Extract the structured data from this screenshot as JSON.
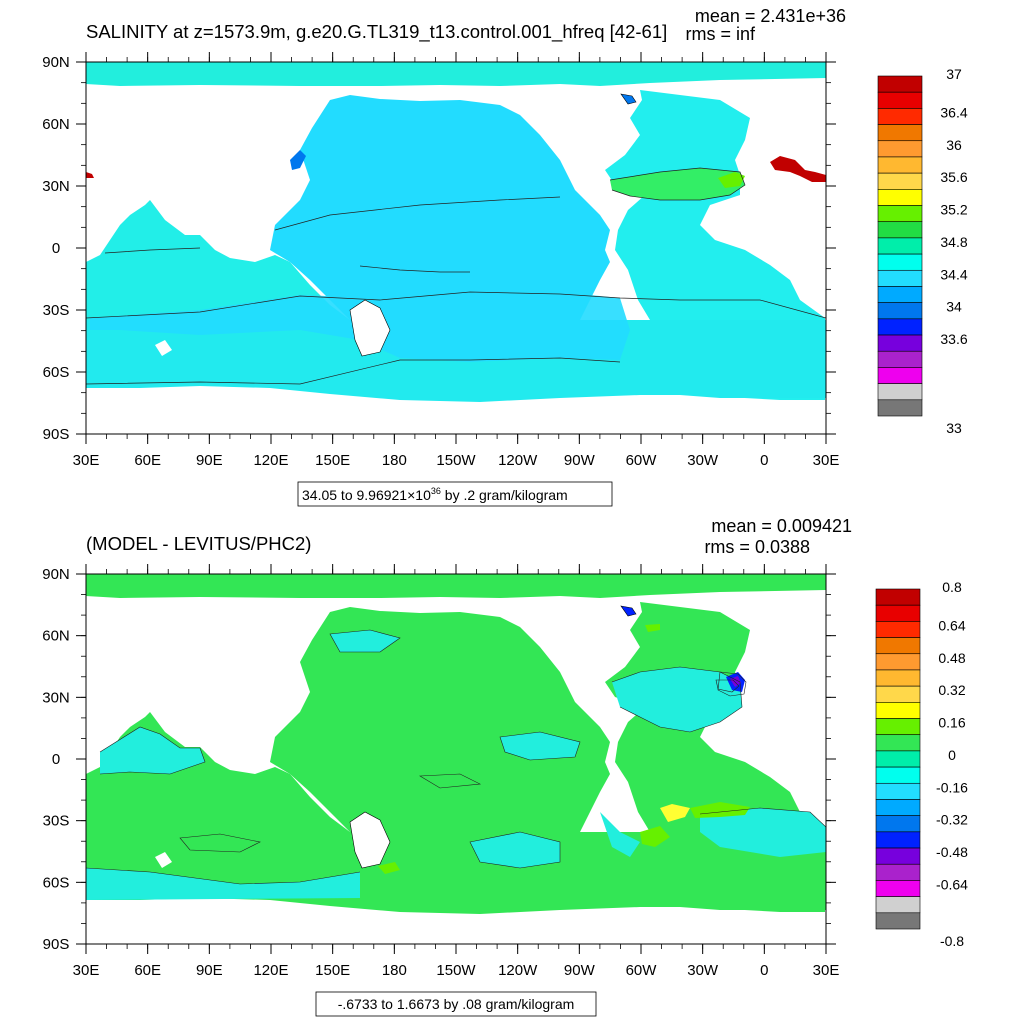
{
  "panel_top": {
    "title": "SALINITY at z=1573.9m, g.e20.G.TL319_t13.control.001_hfreq [42-61]",
    "stats": {
      "mean": "mean = 2.431e+36",
      "rms": "rms = inf"
    },
    "range_note": {
      "prefix": "34.05 to 9.96921",
      "times": "×",
      "base": "10",
      "exponent": "36",
      "suffix": " by .2 gram/kilogram"
    },
    "colorbar": {
      "labels": [
        "37",
        "36.4",
        "36",
        "35.6",
        "35.2",
        "34.8",
        "34.4",
        "34",
        "33.6",
        "33"
      ],
      "colors": [
        "#c10000",
        "#e80000",
        "#ff2a00",
        "#f07800",
        "#ff9a30",
        "#ffb830",
        "#ffd84a",
        "#ffff00",
        "#66f000",
        "#22dd44",
        "#00eeaa",
        "#00ffee",
        "#22ddff",
        "#00aaff",
        "#0077ee",
        "#0022ff",
        "#7700dd",
        "#aa22cc",
        "#ee00ee",
        "#d0d0d0",
        "#777777"
      ]
    },
    "ocean_fill": {
      "pacific": "#22dcff",
      "southern": "#22e8f0",
      "atlantic": "#22eeee",
      "atlantic_core": "#33ee66",
      "arctic": "#22eedd"
    }
  },
  "panel_bottom": {
    "title": "(MODEL - LEVITUS/PHC2)",
    "stats": {
      "mean": "mean = 0.009421",
      "rms": "rms = 0.0388"
    },
    "range_note": {
      "text": "-.6733 to 1.6673 by .08 gram/kilogram"
    },
    "colorbar": {
      "labels": [
        "0.8",
        "0.64",
        "0.48",
        "0.32",
        "0.16",
        "0",
        "-0.16",
        "-0.32",
        "-0.48",
        "-0.64",
        "-0.8"
      ],
      "colors": [
        "#c10000",
        "#e80000",
        "#ff2a00",
        "#f07800",
        "#ff9a30",
        "#ffb830",
        "#ffd84a",
        "#ffff00",
        "#66f000",
        "#33e655",
        "#00eeaa",
        "#00ffee",
        "#22ddff",
        "#00aaff",
        "#0077ee",
        "#0022ff",
        "#7700dd",
        "#aa22cc",
        "#ee00ee",
        "#d0d0d0",
        "#777777"
      ]
    },
    "ocean_fill": {
      "main": "#33e655",
      "cyan": "#22eedd",
      "yellow": "#ffff33"
    }
  },
  "axes": {
    "lon_labels": [
      "30E",
      "60E",
      "90E",
      "120E",
      "150E",
      "180",
      "150W",
      "120W",
      "90W",
      "60W",
      "30W",
      "0",
      "30E"
    ],
    "lat_labels": [
      "90N",
      "60N",
      "30N",
      "0",
      "30S",
      "60S",
      "90S"
    ]
  }
}
